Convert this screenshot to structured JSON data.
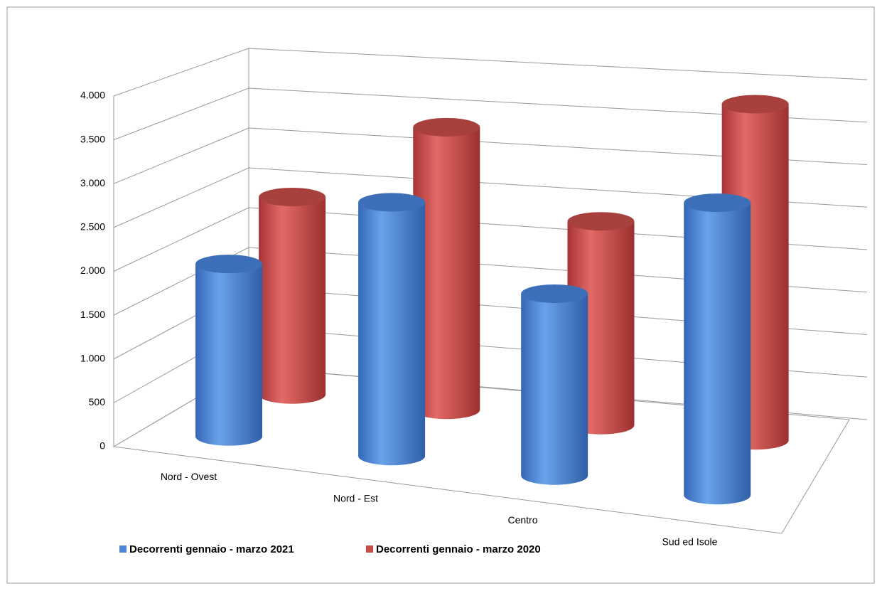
{
  "chart_data": {
    "type": "bar3d",
    "categories": [
      "Nord - Ovest",
      "Nord - Est",
      "Centro",
      "Sud ed Isole"
    ],
    "series": [
      {
        "name": "Decorrenti gennaio - marzo 2021",
        "color": "#4f86d8",
        "values": [
          2000,
          2900,
          2050,
          3250
        ]
      },
      {
        "name": "Decorrenti gennaio - marzo 2020",
        "color": "#c94a47",
        "values": [
          2400,
          3380,
          2400,
          3900
        ]
      }
    ],
    "ylim": [
      0,
      4000
    ],
    "yticks": [
      0,
      500,
      {
        "value": 1000,
        "label": "1.000"
      },
      {
        "value": 1500,
        "label": "1.500"
      },
      {
        "value": 2000,
        "label": "2.000"
      },
      {
        "value": 2500,
        "label": "2.500"
      },
      {
        "value": 3000,
        "label": "3.000"
      },
      {
        "value": 3500,
        "label": "3.500"
      },
      {
        "value": 4000,
        "label": "4.000"
      }
    ],
    "grid": true,
    "legend": "bottom"
  }
}
